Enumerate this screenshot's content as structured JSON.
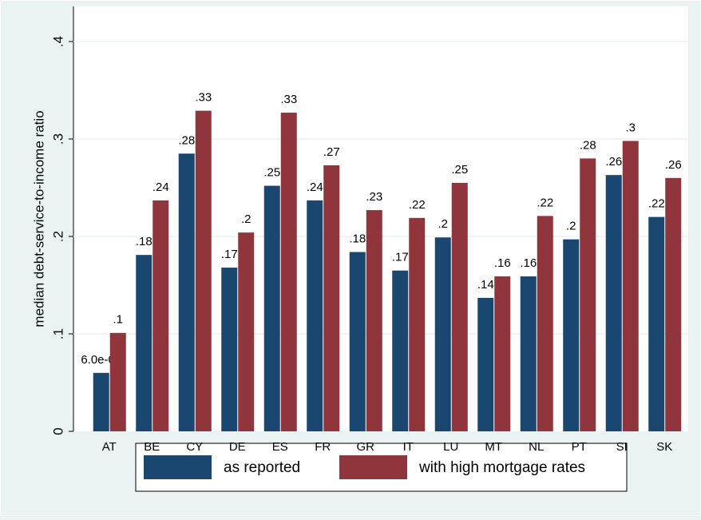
{
  "chart_data": {
    "type": "bar",
    "y_label": "median debt-service-to-income ratio",
    "categories": [
      "AT",
      "BE",
      "CY",
      "DE",
      "ES",
      "FR",
      "GR",
      "IT",
      "LU",
      "MT",
      "NL",
      "PT",
      "SI",
      "SK"
    ],
    "series": [
      {
        "name": "as reported",
        "color": "#1a476f",
        "values": [
          0.06,
          0.181,
          0.285,
          0.168,
          0.252,
          0.237,
          0.184,
          0.165,
          0.199,
          0.137,
          0.159,
          0.197,
          0.263,
          0.22
        ],
        "value_labels": [
          "6.0e-02",
          ".18",
          ".28",
          ".17",
          ".25",
          ".24",
          ".18",
          ".17",
          ".2",
          ".14",
          ".16",
          ".2",
          ".26",
          ".22"
        ]
      },
      {
        "name": "with high mortgage rates",
        "color": "#90353b",
        "values": [
          0.101,
          0.237,
          0.329,
          0.204,
          0.327,
          0.273,
          0.227,
          0.219,
          0.255,
          0.159,
          0.221,
          0.28,
          0.298,
          0.26
        ],
        "value_labels": [
          ".1",
          ".24",
          ".33",
          ".2",
          ".33",
          ".27",
          ".23",
          ".22",
          ".25",
          ".16",
          ".22",
          ".28",
          ".3",
          ".26"
        ]
      }
    ],
    "ylim": [
      0,
      0.4
    ],
    "yticks": [
      {
        "value": 0,
        "label": "0"
      },
      {
        "value": 0.1,
        "label": ".1"
      },
      {
        "value": 0.2,
        "label": ".2"
      },
      {
        "value": 0.3,
        "label": ".3"
      },
      {
        "value": 0.4,
        "label": ".4"
      }
    ],
    "grid": true
  }
}
